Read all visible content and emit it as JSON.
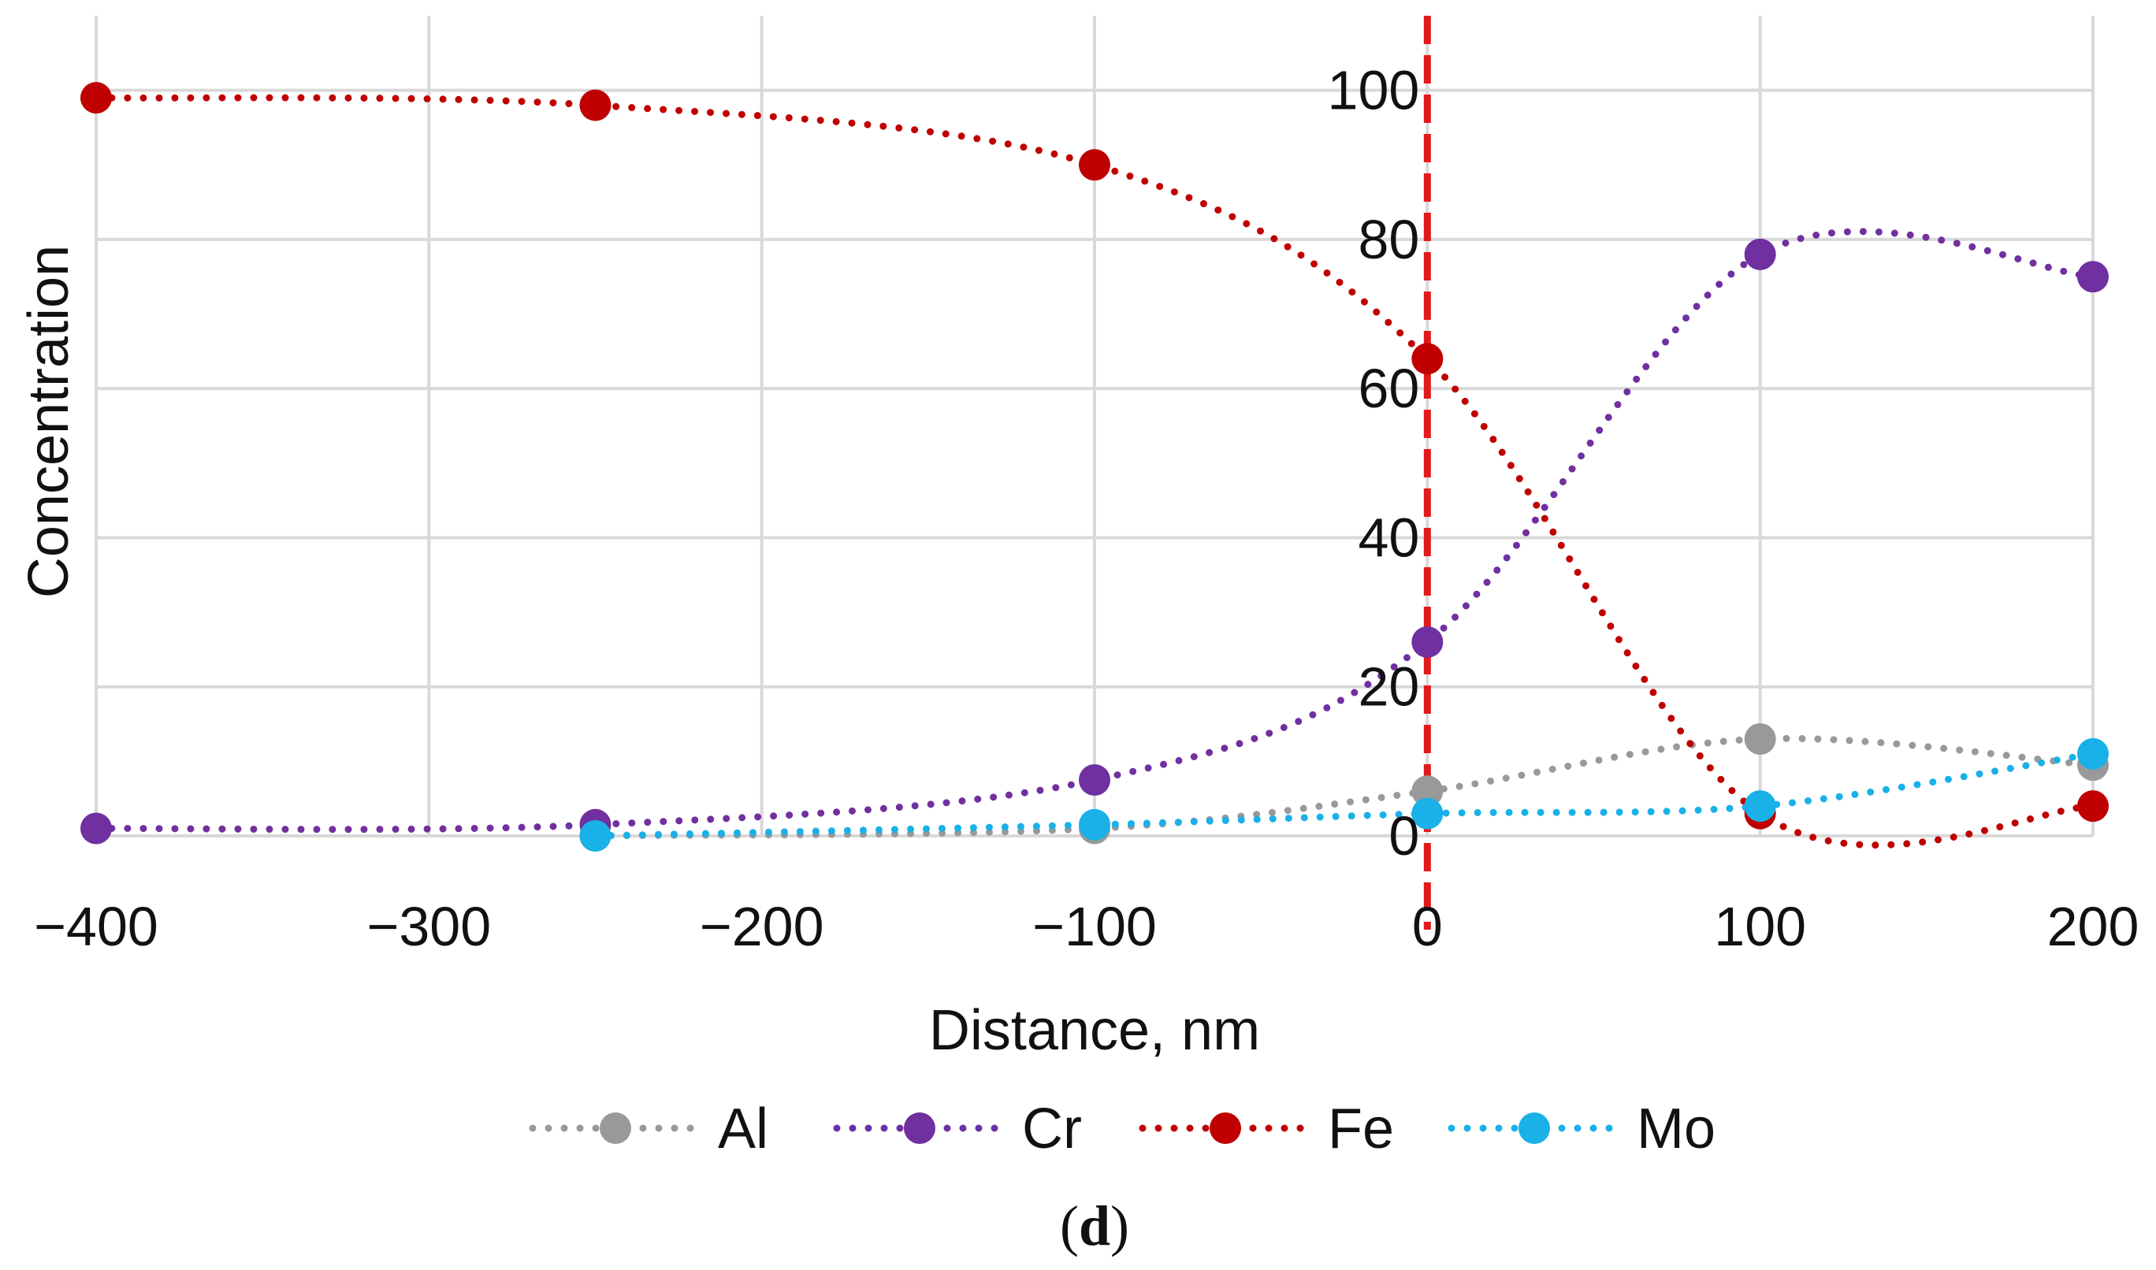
{
  "chart_data": {
    "type": "line",
    "xlabel": "Distance, nm",
    "ylabel": "Concentration",
    "xlim": [
      -400,
      200
    ],
    "ylim": [
      0,
      110
    ],
    "x_ticks": [
      -400,
      -300,
      -200,
      -100,
      0,
      100,
      200
    ],
    "x_tick_labels": [
      "−400",
      "−300",
      "−200",
      "−100",
      "0",
      "100",
      "200"
    ],
    "y_ticks": [
      0,
      20,
      40,
      60,
      80,
      100
    ],
    "y_tick_labels": [
      "0",
      "20",
      "40",
      "60",
      "80",
      "100"
    ],
    "grid": true,
    "reference_line": {
      "x": 0,
      "color": "#e31a1c",
      "style": "dashed"
    },
    "legend_position": "bottom",
    "series": [
      {
        "name": "Al",
        "color": "#999999",
        "x": [
          -250,
          -100,
          0,
          100,
          200
        ],
        "y": [
          0,
          1,
          6,
          13,
          9.5
        ]
      },
      {
        "name": "Cr",
        "color": "#7030a0",
        "x": [
          -400,
          -250,
          -100,
          0,
          100,
          200
        ],
        "y": [
          1,
          1.5,
          7.5,
          26,
          78,
          75
        ]
      },
      {
        "name": "Fe",
        "color": "#c00000",
        "x": [
          -400,
          -250,
          -100,
          0,
          100,
          200
        ],
        "y": [
          99,
          98,
          90,
          64,
          3,
          4
        ]
      },
      {
        "name": "Mo",
        "color": "#1ab0e8",
        "x": [
          -250,
          -100,
          0,
          100,
          200
        ],
        "y": [
          0,
          1.5,
          3,
          4,
          11
        ]
      }
    ]
  },
  "caption": {
    "open": "(",
    "letter": "d",
    "close": ")"
  }
}
